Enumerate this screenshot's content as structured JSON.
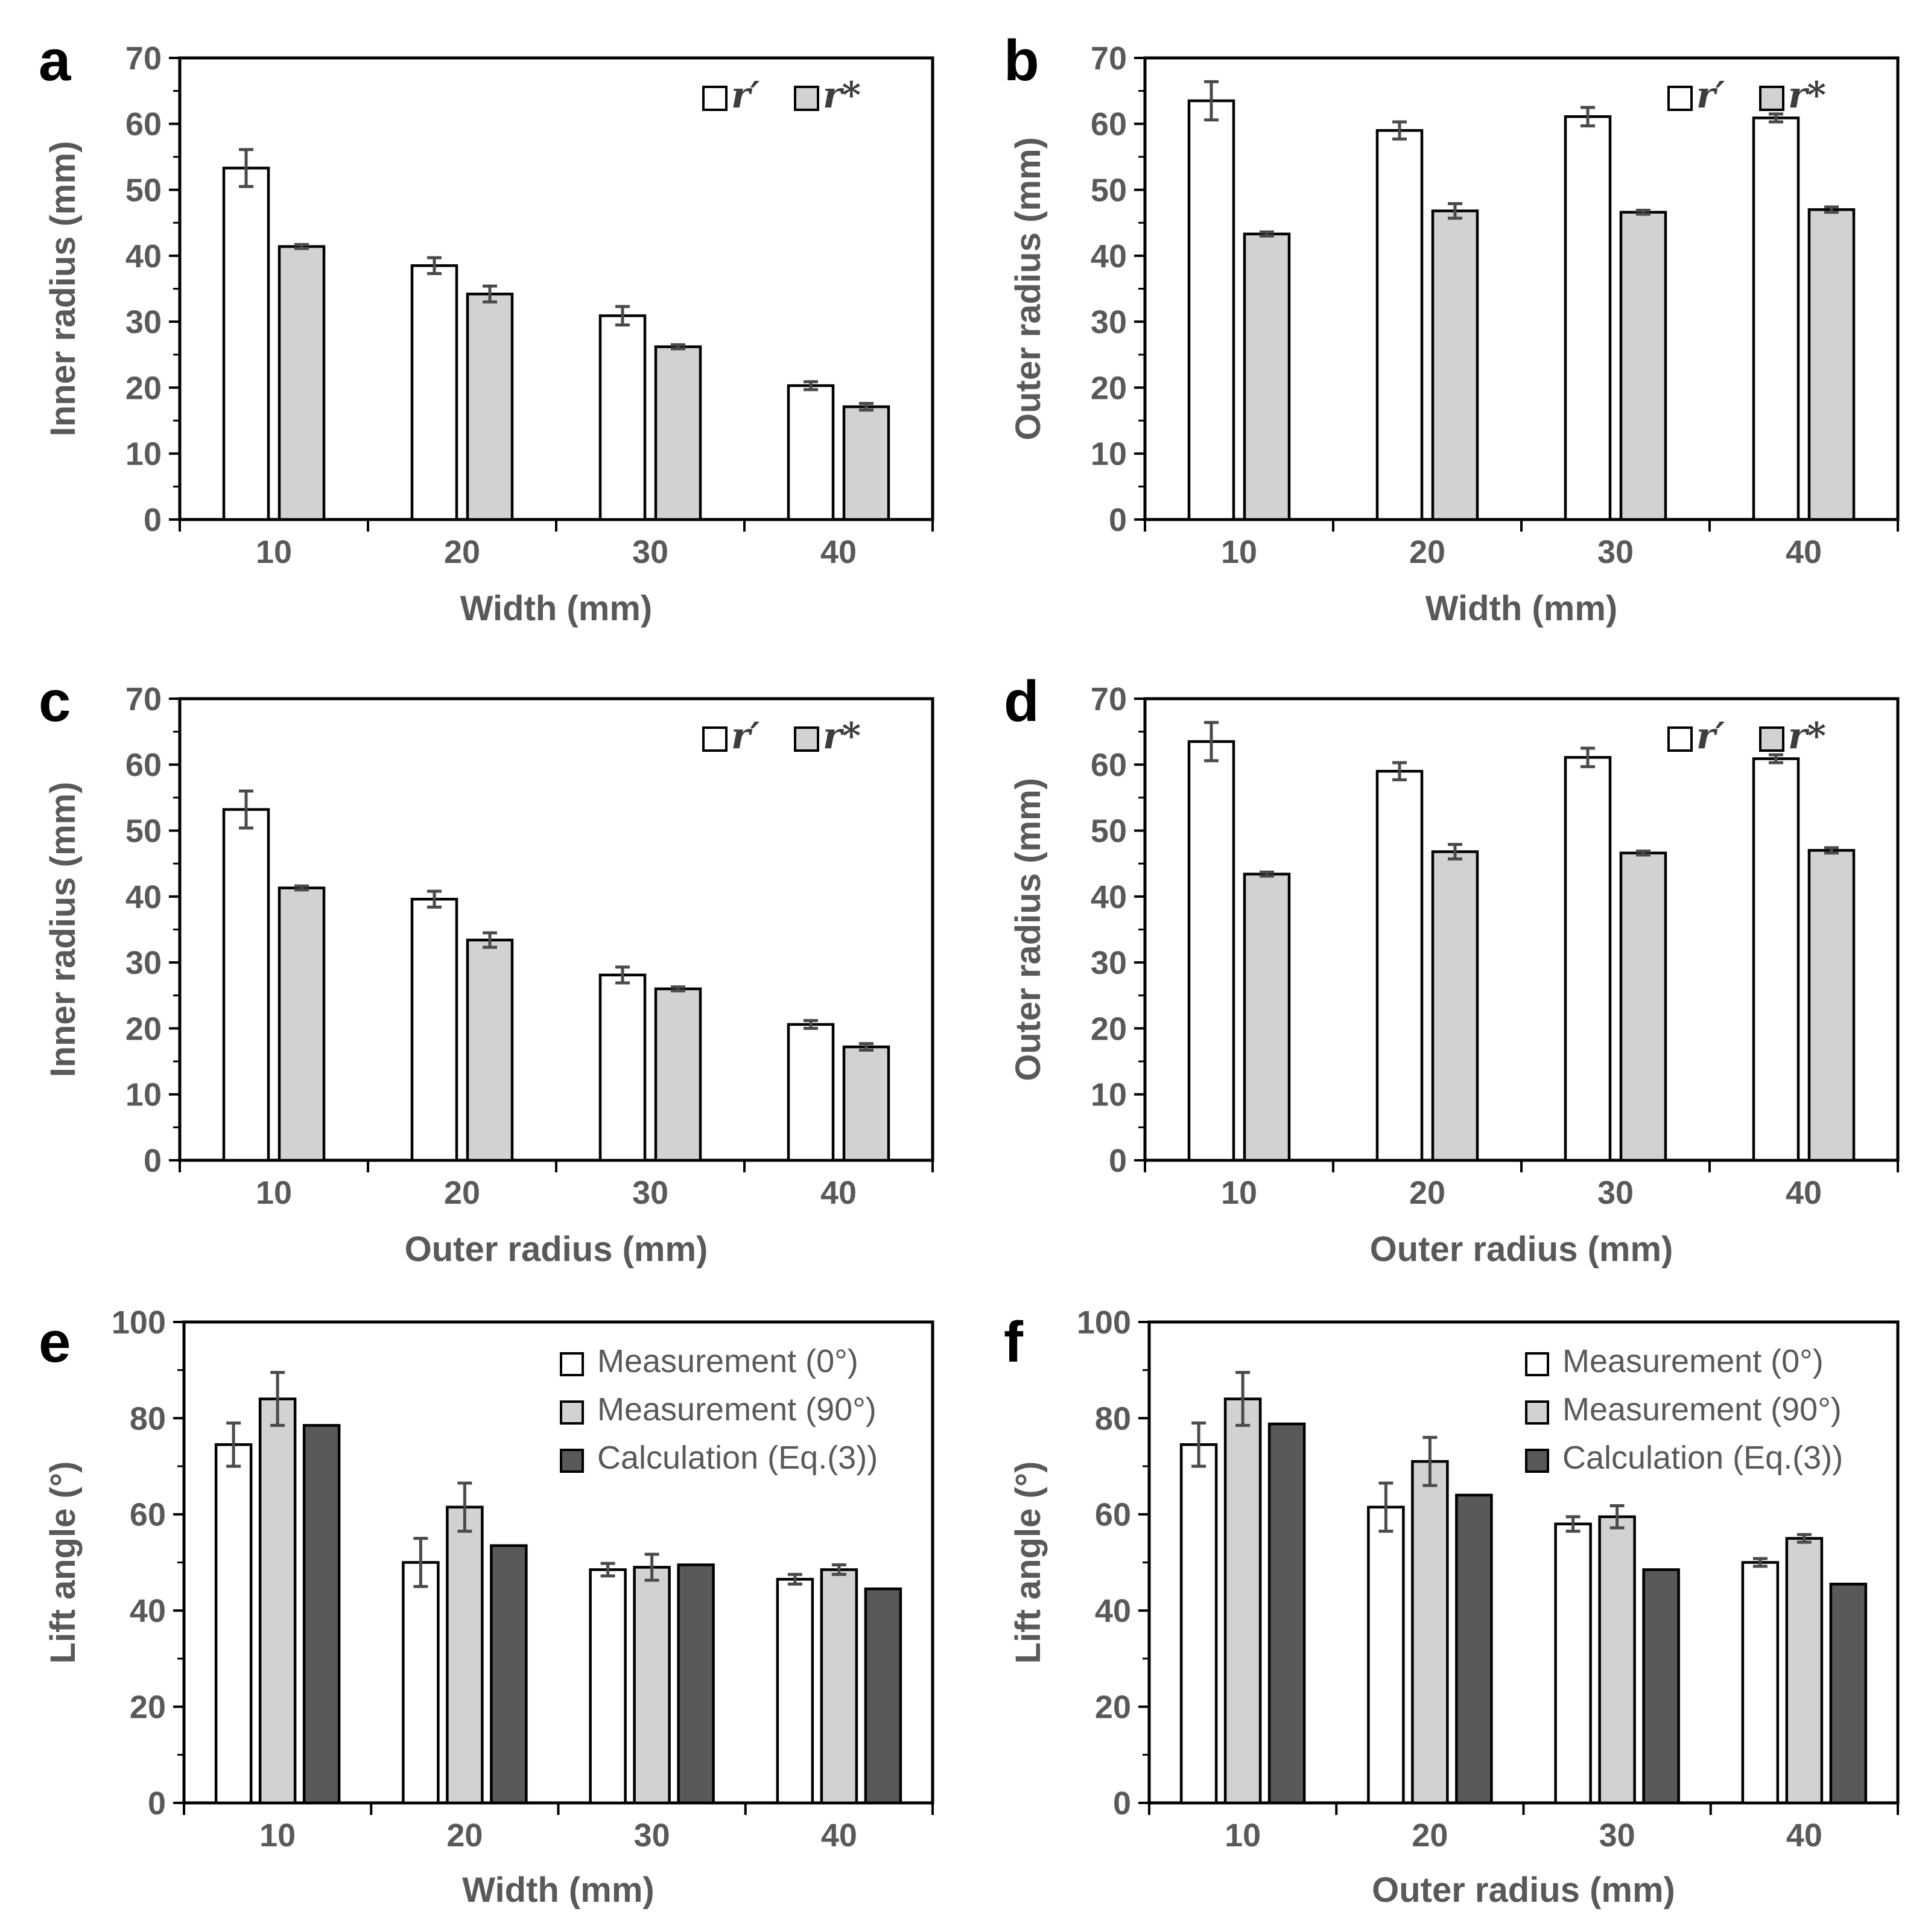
{
  "colors": {
    "axis": "#000000",
    "text": "#595959",
    "error": "#4a4a4a",
    "bar_white": "#ffffff",
    "bar_light_gray": "#d2d2d2",
    "bar_dark_gray": "#595959"
  },
  "chart_data": [
    {
      "id": "a",
      "label": "a",
      "type": "bar",
      "xlabel": "Width (mm)",
      "ylabel": "Inner radius (mm)",
      "ylim": [
        0,
        70
      ],
      "ytick_major": 10,
      "ytick_minor": 5,
      "grid": false,
      "legend_position": "top-right",
      "legend_layout": "row",
      "categories": [
        "10",
        "20",
        "30",
        "40"
      ],
      "series": [
        {
          "name": "r′",
          "fill": "#ffffff",
          "values": [
            53.3,
            38.5,
            30.9,
            20.3
          ],
          "errors": [
            2.8,
            1.2,
            1.4,
            0.6
          ]
        },
        {
          "name": "r*",
          "fill": "#d2d2d2",
          "values": [
            41.4,
            34.2,
            26.2,
            17.1
          ],
          "errors": [
            0.3,
            1.2,
            0.3,
            0.5
          ]
        }
      ]
    },
    {
      "id": "b",
      "label": "b",
      "type": "bar",
      "xlabel": "Width (mm)",
      "ylabel": "Outer radius (mm)",
      "ylim": [
        0,
        70
      ],
      "ytick_major": 10,
      "ytick_minor": 5,
      "grid": false,
      "legend_position": "top-right",
      "legend_layout": "row",
      "categories": [
        "10",
        "20",
        "30",
        "40"
      ],
      "series": [
        {
          "name": "r′",
          "fill": "#ffffff",
          "values": [
            63.5,
            59.0,
            61.1,
            60.9
          ],
          "errors": [
            2.9,
            1.3,
            1.4,
            0.6
          ]
        },
        {
          "name": "r*",
          "fill": "#d2d2d2",
          "values": [
            43.3,
            46.8,
            46.6,
            47.0
          ],
          "errors": [
            0.3,
            1.1,
            0.3,
            0.4
          ]
        }
      ]
    },
    {
      "id": "c",
      "label": "c",
      "type": "bar",
      "xlabel": "Outer radius (mm)",
      "ylabel": "Inner radius (mm)",
      "ylim": [
        0,
        70
      ],
      "ytick_major": 10,
      "ytick_minor": 5,
      "grid": false,
      "legend_position": "top-right",
      "legend_layout": "row",
      "categories": [
        "10",
        "20",
        "30",
        "40"
      ],
      "series": [
        {
          "name": "r′",
          "fill": "#ffffff",
          "values": [
            53.2,
            39.6,
            28.1,
            20.6
          ],
          "errors": [
            2.8,
            1.2,
            1.2,
            0.6
          ]
        },
        {
          "name": "r*",
          "fill": "#d2d2d2",
          "values": [
            41.3,
            33.4,
            26.0,
            17.2
          ],
          "errors": [
            0.3,
            1.1,
            0.3,
            0.5
          ]
        }
      ]
    },
    {
      "id": "d",
      "label": "d",
      "type": "bar",
      "xlabel": "Outer radius (mm)",
      "ylabel": "Outer radius (mm)",
      "ylim": [
        0,
        70
      ],
      "ytick_major": 10,
      "ytick_minor": 5,
      "grid": false,
      "legend_position": "top-right",
      "legend_layout": "row",
      "categories": [
        "10",
        "20",
        "30",
        "40"
      ],
      "series": [
        {
          "name": "r′",
          "fill": "#ffffff",
          "values": [
            63.5,
            59.0,
            61.1,
            60.9
          ],
          "errors": [
            2.9,
            1.3,
            1.4,
            0.6
          ]
        },
        {
          "name": "r*",
          "fill": "#d2d2d2",
          "values": [
            43.4,
            46.8,
            46.6,
            47.0
          ],
          "errors": [
            0.3,
            1.1,
            0.3,
            0.4
          ]
        }
      ]
    },
    {
      "id": "e",
      "label": "e",
      "type": "bar",
      "xlabel": "Width (mm)",
      "ylabel": "Lift angle (°)",
      "ylim": [
        0,
        100
      ],
      "ytick_major": 20,
      "ytick_minor": 10,
      "grid": false,
      "legend_position": "top-right",
      "legend_layout": "column",
      "categories": [
        "10",
        "20",
        "30",
        "40"
      ],
      "series": [
        {
          "name": "Measurement (0°)",
          "fill": "#ffffff",
          "values": [
            74.5,
            50.0,
            48.5,
            46.5
          ],
          "errors": [
            4.5,
            5.0,
            1.3,
            1.0
          ]
        },
        {
          "name": "Measurement (90°)",
          "fill": "#d2d2d2",
          "values": [
            84.0,
            61.5,
            49.0,
            48.5
          ],
          "errors": [
            5.5,
            5.0,
            2.7,
            1.0
          ]
        },
        {
          "name": "Calculation (Eq.(3))",
          "fill": "#595959",
          "values": [
            78.5,
            53.5,
            49.5,
            44.5
          ],
          "errors": null
        }
      ]
    },
    {
      "id": "f",
      "label": "f",
      "type": "bar",
      "xlabel": "Outer radius (mm)",
      "ylabel": "Lift angle (°)",
      "ylim": [
        0,
        100
      ],
      "ytick_major": 20,
      "ytick_minor": 10,
      "grid": false,
      "legend_position": "top-right",
      "legend_layout": "column",
      "categories": [
        "10",
        "20",
        "30",
        "40"
      ],
      "series": [
        {
          "name": "Measurement (0°)",
          "fill": "#ffffff",
          "values": [
            74.5,
            61.5,
            58.0,
            50.0
          ],
          "errors": [
            4.5,
            5.0,
            1.5,
            0.8
          ]
        },
        {
          "name": "Measurement (90°)",
          "fill": "#d2d2d2",
          "values": [
            84.0,
            71.0,
            59.5,
            55.0
          ],
          "errors": [
            5.5,
            5.0,
            2.3,
            0.8
          ]
        },
        {
          "name": "Calculation (Eq.(3))",
          "fill": "#595959",
          "values": [
            78.8,
            64.0,
            48.5,
            45.5
          ],
          "errors": null
        }
      ]
    }
  ]
}
